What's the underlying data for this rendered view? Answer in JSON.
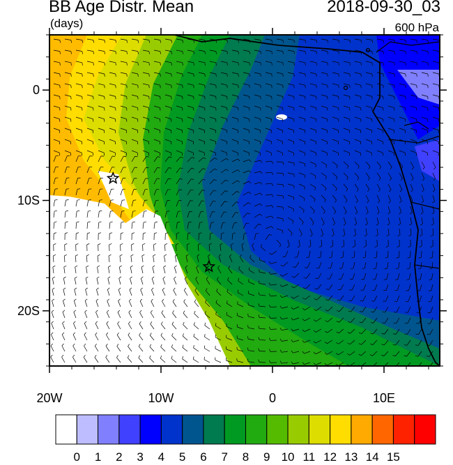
{
  "header": {
    "title": "BB Age Distr. Mean",
    "units": "(days)",
    "datetime": "2018-09-30_03",
    "level": "600 hPa"
  },
  "axes": {
    "lat_ticks": [
      {
        "label": "0",
        "lat": 0
      },
      {
        "label": "10S",
        "lat": -10
      },
      {
        "label": "20S",
        "lat": -20
      }
    ],
    "lon_ticks": [
      {
        "label": "20W",
        "lon": -20
      },
      {
        "label": "10W",
        "lon": -10
      },
      {
        "label": "0",
        "lon": 0
      },
      {
        "label": "10E",
        "lon": 10
      }
    ],
    "lon_range": [
      -20,
      15
    ],
    "lat_range": [
      -25,
      5
    ]
  },
  "markers": [
    {
      "name": "star-1",
      "lon": -14.3,
      "lat": -8.0
    },
    {
      "name": "star-2",
      "lon": -5.7,
      "lat": -16.0
    }
  ],
  "colorbar": {
    "labels": [
      "0",
      "1",
      "2",
      "3",
      "4",
      "5",
      "6",
      "7",
      "8",
      "9",
      "10",
      "11",
      "12",
      "13",
      "14",
      "15"
    ],
    "colors": [
      "#ffffff",
      "#bdbdff",
      "#8080ff",
      "#4040ff",
      "#0000ff",
      "#0033cc",
      "#00558f",
      "#007a4f",
      "#009922",
      "#22aa11",
      "#55bb00",
      "#99cc00",
      "#dddd00",
      "#ffdd00",
      "#ffaa00",
      "#ff6600",
      "#ff2200",
      "#ff0000"
    ]
  }
}
